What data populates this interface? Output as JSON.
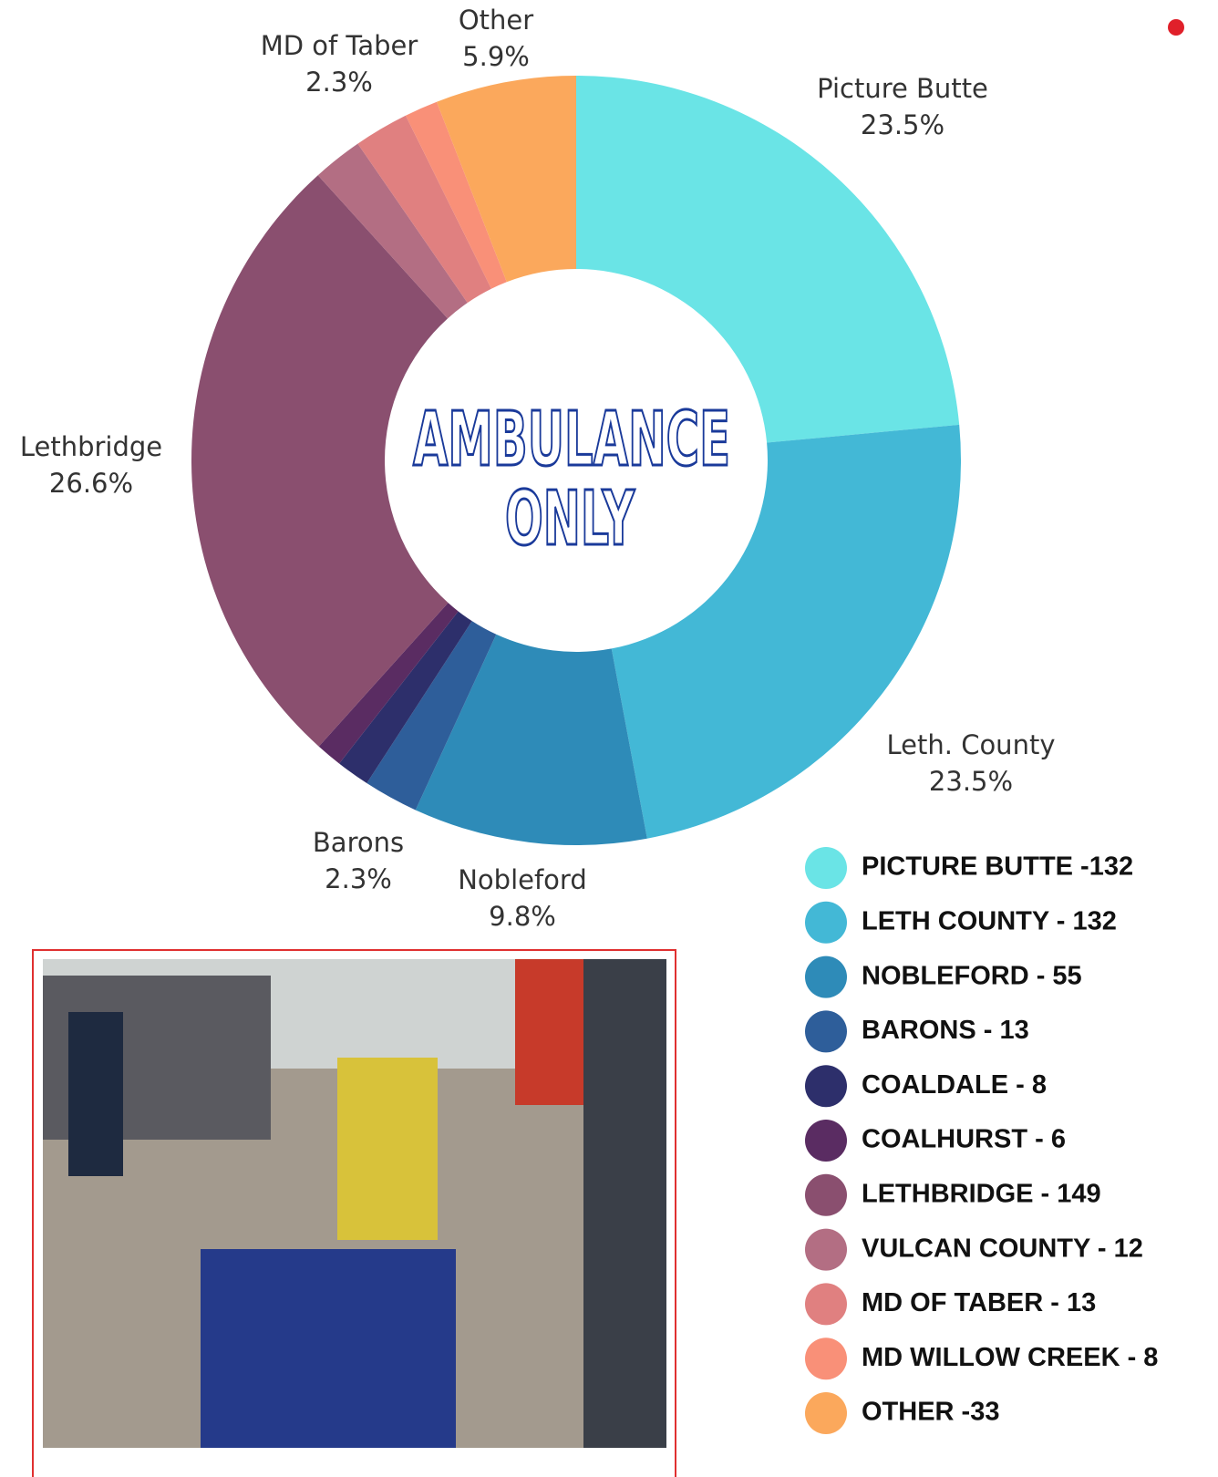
{
  "chart_data": {
    "type": "donut",
    "center_text": [
      "AMBULANCE",
      "ONLY"
    ],
    "categories": [
      "Picture Butte",
      "Leth. County",
      "Nobleford",
      "Barons",
      null,
      null,
      "Lethbridge",
      null,
      "MD of Taber",
      null,
      "Other"
    ],
    "values": [
      23.5,
      23.5,
      9.8,
      2.3,
      1.4,
      1.1,
      26.6,
      2.1,
      2.3,
      1.4,
      5.9
    ],
    "value_labels": [
      "23.5%",
      "23.5%",
      "9.8%",
      "2.3%",
      null,
      null,
      "26.6%",
      null,
      "2.3%",
      null,
      "5.9%"
    ],
    "colors": [
      "#6ae4e6",
      "#43b8d6",
      "#2e8bb8",
      "#2e5e9a",
      "#2d2f6b",
      "#5a2c62",
      "#8a4f6f",
      "#b36e83",
      "#e08080",
      "#f99078",
      "#fba85c"
    ],
    "legend": [
      "PICTURE BUTTE -132",
      "LETH COUNTY - 132",
      "NOBLEFORD - 55",
      "BARONS - 13",
      "COALDALE - 8",
      "COALHURST - 6",
      "LETHBRIDGE - 149",
      "VULCAN COUNTY - 12",
      "MD OF TABER - 13",
      "MD WILLOW CREEK - 8",
      "OTHER -33"
    ]
  }
}
